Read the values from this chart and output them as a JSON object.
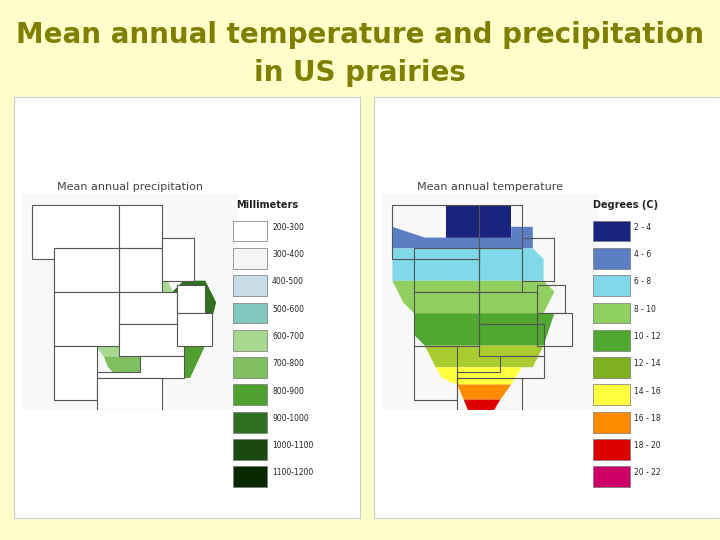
{
  "title_line1": "Mean annual temperature and precipitation",
  "title_line2": "in US prairies",
  "title_color": "#808000",
  "background_color": "#ffffcc",
  "left_map_title": "Mean annual precipitation",
  "right_map_title": "Mean annual temperature",
  "left_legend_title": "Millimeters",
  "right_legend_title": "Degrees (C)",
  "left_legend_labels": [
    "200-300",
    "300-400",
    "400-500",
    "500-600",
    "600-700",
    "700-800",
    "800-900",
    "900-1000",
    "1000-1100",
    "1100-1200"
  ],
  "left_legend_colors": [
    "#ffffff",
    "#f5f5f5",
    "#c8dce8",
    "#80c8c0",
    "#a8d890",
    "#80c060",
    "#50a030",
    "#307020",
    "#1a4a10",
    "#0a2800"
  ],
  "right_legend_labels": [
    "2 - 4",
    "4 - 6",
    "6 - 8",
    "8 - 10",
    "10 - 12",
    "12 - 14",
    "14 - 16",
    "16 - 18",
    "18 - 20",
    "20 - 22"
  ],
  "right_legend_colors": [
    "#1a237e",
    "#5c7fc4",
    "#80d8e8",
    "#90d060",
    "#50a830",
    "#80b020",
    "#ffff40",
    "#ff8c00",
    "#dd0000",
    "#cc0066"
  ],
  "title_fontsize": 20,
  "legend_fontsize": 7,
  "map_title_fontsize": 8,
  "font_family": "Comic Sans MS",
  "left_map_bg": "#f8f8f8",
  "right_map_bg": "#f8f8f8",
  "map_border_color": "#cccccc"
}
